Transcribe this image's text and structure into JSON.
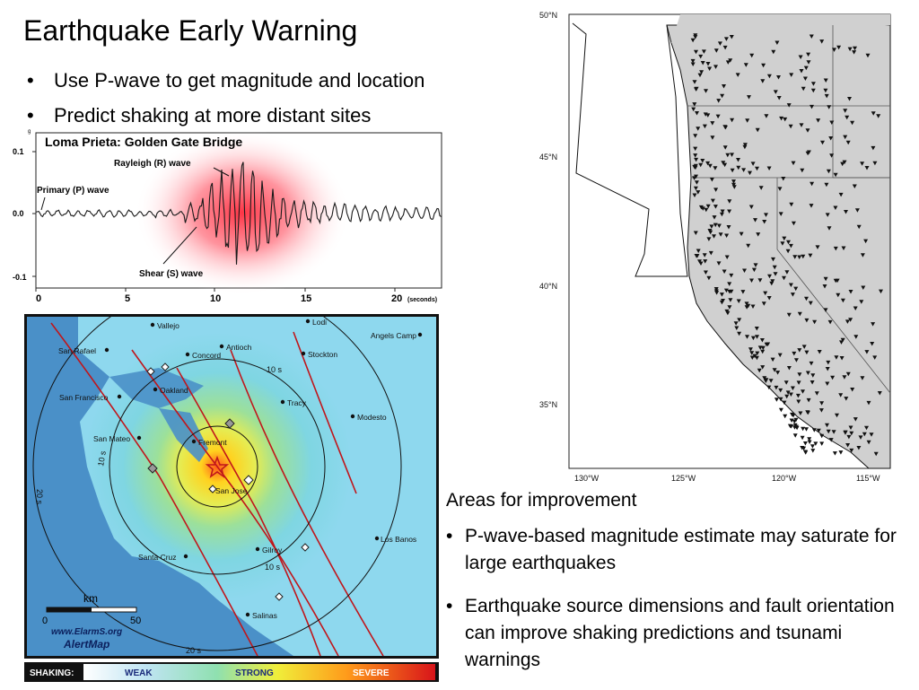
{
  "slide": {
    "title": "Earthquake Early Warning",
    "bullets": [
      "Use P-wave to get magnitude and location",
      "Predict shaking at more distant sites"
    ],
    "areas_heading": "Areas for improvement",
    "areas": [
      "P-wave-based magnitude estimate may saturate for large earthquakes",
      "Earthquake source dimensions and fault orientation can improve shaking predictions and tsunami warnings"
    ]
  },
  "seismogram": {
    "title": "Loma Prieta: Golden Gate Bridge",
    "unit_g": "g",
    "y_ticks": [
      "0.1",
      "0.0",
      "-0.1"
    ],
    "x_ticks": [
      "0",
      "5",
      "10",
      "15",
      "20"
    ],
    "x_unit": "(seconds)",
    "labels": {
      "rayleigh": "Rayleigh (R) wave",
      "primary": "Primary (P) wave",
      "shear": "Shear (S) wave"
    }
  },
  "alert_map": {
    "cities": [
      "Vallejo",
      "Lodi",
      "San Rafael",
      "Antioch",
      "Concord",
      "Stockton",
      "Angels Camp",
      "Oakland",
      "San Francisco",
      "Tracy",
      "Modesto",
      "San Mateo",
      "Fremont",
      "San Jose",
      "Los Banos",
      "Gilroy",
      "Santa Cruz",
      "Salinas"
    ],
    "ring_labels": [
      "10 s",
      "10 s",
      "20 s",
      "10 s",
      "20 s"
    ],
    "scale": {
      "unit": "km",
      "start": "0",
      "end": "50"
    },
    "credit": {
      "url": "www.ElarmS.org",
      "name": "AlertMap"
    },
    "shaking_bar": {
      "label": "SHAKING:",
      "weak": "WEAK",
      "strong": "STRONG",
      "severe": "SEVERE"
    }
  },
  "station_map": {
    "lat_labels": [
      "50°N",
      "45°N",
      "40°N",
      "35°N"
    ],
    "lon_labels": [
      "130°W",
      "125°W",
      "120°W",
      "115°W"
    ]
  },
  "colors": {
    "seismo_glow": "#ff2a3c",
    "ocean": "#4a90c8",
    "land_shade": "#d0d0d0",
    "fault": "#c0161b"
  }
}
